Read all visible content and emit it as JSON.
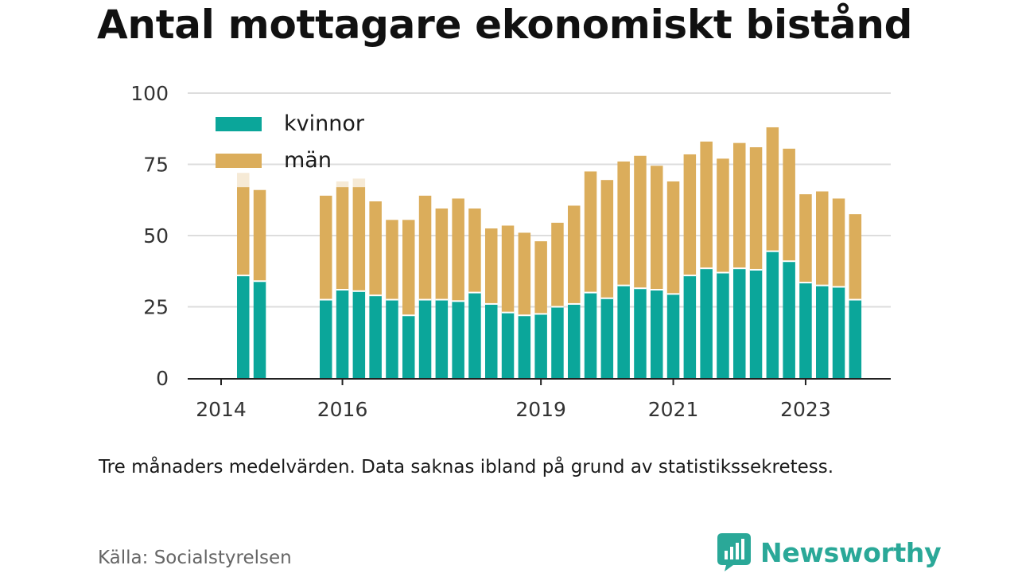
{
  "title": "Antal mottagare ekonomiskt bistånd",
  "note": "Tre månaders medelvärden. Data saknas ibland på grund av statistikssekretess.",
  "source": "Källa: Socialstyrelsen",
  "brand": "Newsworthy",
  "colors": {
    "kvinnor": "#0ba69a",
    "man": "#dbad5b",
    "suppressed": "#f6ead6",
    "grid": "#dddddd",
    "axis": "#222222",
    "brand": "#2aa898"
  },
  "chart_data": {
    "type": "bar",
    "stacked": true,
    "ylim": [
      0,
      100
    ],
    "yticks": [
      0,
      25,
      50,
      75,
      100
    ],
    "xticks": [
      "2014",
      "2016",
      "2019",
      "2021",
      "2023"
    ],
    "grid": true,
    "legend_position": "top-left",
    "series": [
      {
        "name": "kvinnor",
        "color": "#0ba69a"
      },
      {
        "name": "män",
        "color": "#dbad5b"
      }
    ],
    "periods": [
      {
        "period": "2014 Q3",
        "kvinnor": 36,
        "man": 31,
        "suppressed_total": 72
      },
      {
        "period": "2014 Q4",
        "kvinnor": 34,
        "man": 32
      },
      {
        "period": "2015 Q1",
        "kvinnor": null,
        "man": null
      },
      {
        "period": "2015 Q2",
        "kvinnor": null,
        "man": null
      },
      {
        "period": "2015 Q3",
        "kvinnor": null,
        "man": null
      },
      {
        "period": "2015 Q4",
        "kvinnor": 27.5,
        "man": 36.5
      },
      {
        "period": "2016 Q1",
        "kvinnor": 31,
        "man": 36,
        "suppressed_total": 69
      },
      {
        "period": "2016 Q2",
        "kvinnor": 30.5,
        "man": 36.5,
        "suppressed_total": 70
      },
      {
        "period": "2016 Q3",
        "kvinnor": 29,
        "man": 33
      },
      {
        "period": "2016 Q4",
        "kvinnor": 27.5,
        "man": 28
      },
      {
        "period": "2017 Q1",
        "kvinnor": 22,
        "man": 33.5
      },
      {
        "period": "2017 Q2",
        "kvinnor": 27.5,
        "man": 36.5
      },
      {
        "period": "2017 Q3",
        "kvinnor": 27.5,
        "man": 32
      },
      {
        "period": "2017 Q4",
        "kvinnor": 27,
        "man": 36
      },
      {
        "period": "2018 Q1",
        "kvinnor": 30,
        "man": 29.5
      },
      {
        "period": "2018 Q2",
        "kvinnor": 26,
        "man": 26.5
      },
      {
        "period": "2018 Q3",
        "kvinnor": 23,
        "man": 30.5
      },
      {
        "period": "2018 Q4",
        "kvinnor": 22,
        "man": 29
      },
      {
        "period": "2019 Q1",
        "kvinnor": 22.5,
        "man": 25.5
      },
      {
        "period": "2019 Q2",
        "kvinnor": 25,
        "man": 29.5
      },
      {
        "period": "2019 Q3",
        "kvinnor": 26,
        "man": 34.5
      },
      {
        "period": "2019 Q4",
        "kvinnor": 30,
        "man": 42.5
      },
      {
        "period": "2020 Q1",
        "kvinnor": 28,
        "man": 41.5
      },
      {
        "period": "2020 Q2",
        "kvinnor": 32.5,
        "man": 43.5
      },
      {
        "period": "2020 Q3",
        "kvinnor": 31.5,
        "man": 46.5
      },
      {
        "period": "2020 Q4",
        "kvinnor": 31,
        "man": 43.5
      },
      {
        "period": "2021 Q1",
        "kvinnor": 29.5,
        "man": 39.5
      },
      {
        "period": "2021 Q2",
        "kvinnor": 36,
        "man": 42.5
      },
      {
        "period": "2021 Q3",
        "kvinnor": 38.5,
        "man": 44.5
      },
      {
        "period": "2021 Q4",
        "kvinnor": 37,
        "man": 40
      },
      {
        "period": "2022 Q1",
        "kvinnor": 38.5,
        "man": 44
      },
      {
        "period": "2022 Q2",
        "kvinnor": 38,
        "man": 43
      },
      {
        "period": "2022 Q3",
        "kvinnor": 44.5,
        "man": 43.5
      },
      {
        "period": "2022 Q4",
        "kvinnor": 41,
        "man": 39.5
      },
      {
        "period": "2023 Q1",
        "kvinnor": 33.5,
        "man": 31
      },
      {
        "period": "2023 Q2",
        "kvinnor": 32.5,
        "man": 33
      },
      {
        "period": "2023 Q3",
        "kvinnor": 32,
        "man": 31
      },
      {
        "period": "2023 Q4",
        "kvinnor": 27.5,
        "man": 30
      }
    ]
  }
}
